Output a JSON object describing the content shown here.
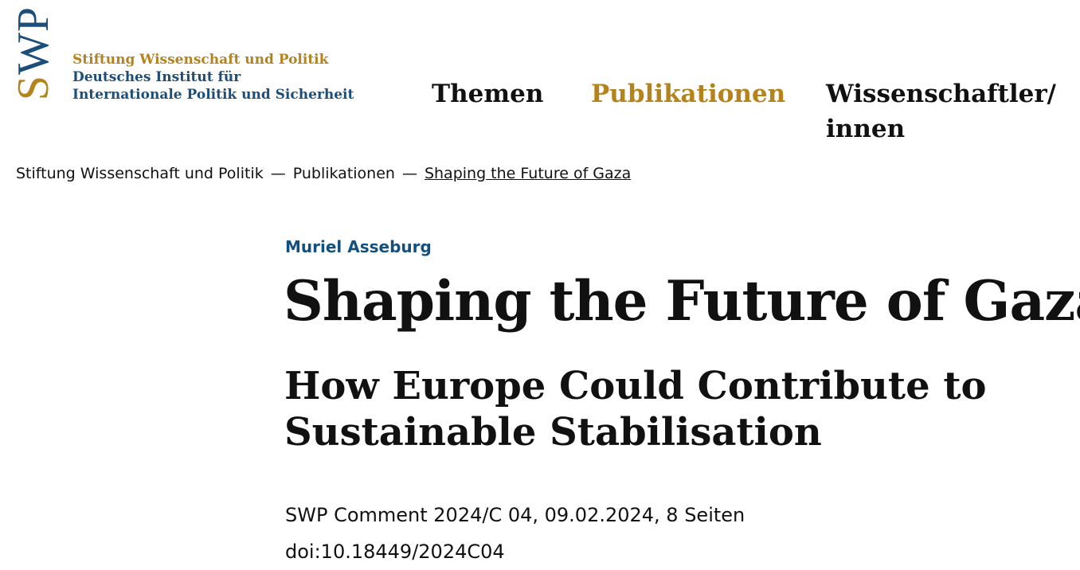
{
  "logo": {
    "letters_gold": "S",
    "letters_blue": "WP",
    "line1": "Stiftung Wissenschaft und Politik",
    "line2": "Deutsches Institut für",
    "line3": "Internationale Politik und Sicherheit",
    "colors": {
      "gold": "#b5831b",
      "blue": "#1b4e7b"
    }
  },
  "nav": {
    "items": [
      {
        "label": "Themen"
      },
      {
        "label": "Publikationen",
        "active": true
      },
      {
        "label": "Wissenschaftler/\ninnen"
      }
    ]
  },
  "breadcrumb": {
    "items": [
      "Stiftung Wissenschaft und Politik",
      "Publikationen",
      "Shaping the Future of Gaza"
    ],
    "separator": "—"
  },
  "article": {
    "author": "Muriel Asseburg",
    "title": "Shaping the Future of Gaza",
    "subtitle": "How Europe Could Contribute to Sustainable Stabilisation",
    "meta": "SWP Comment 2024/C 04, 09.02.2024, 8 Seiten",
    "doi": "doi:10.18449/2024C04"
  }
}
